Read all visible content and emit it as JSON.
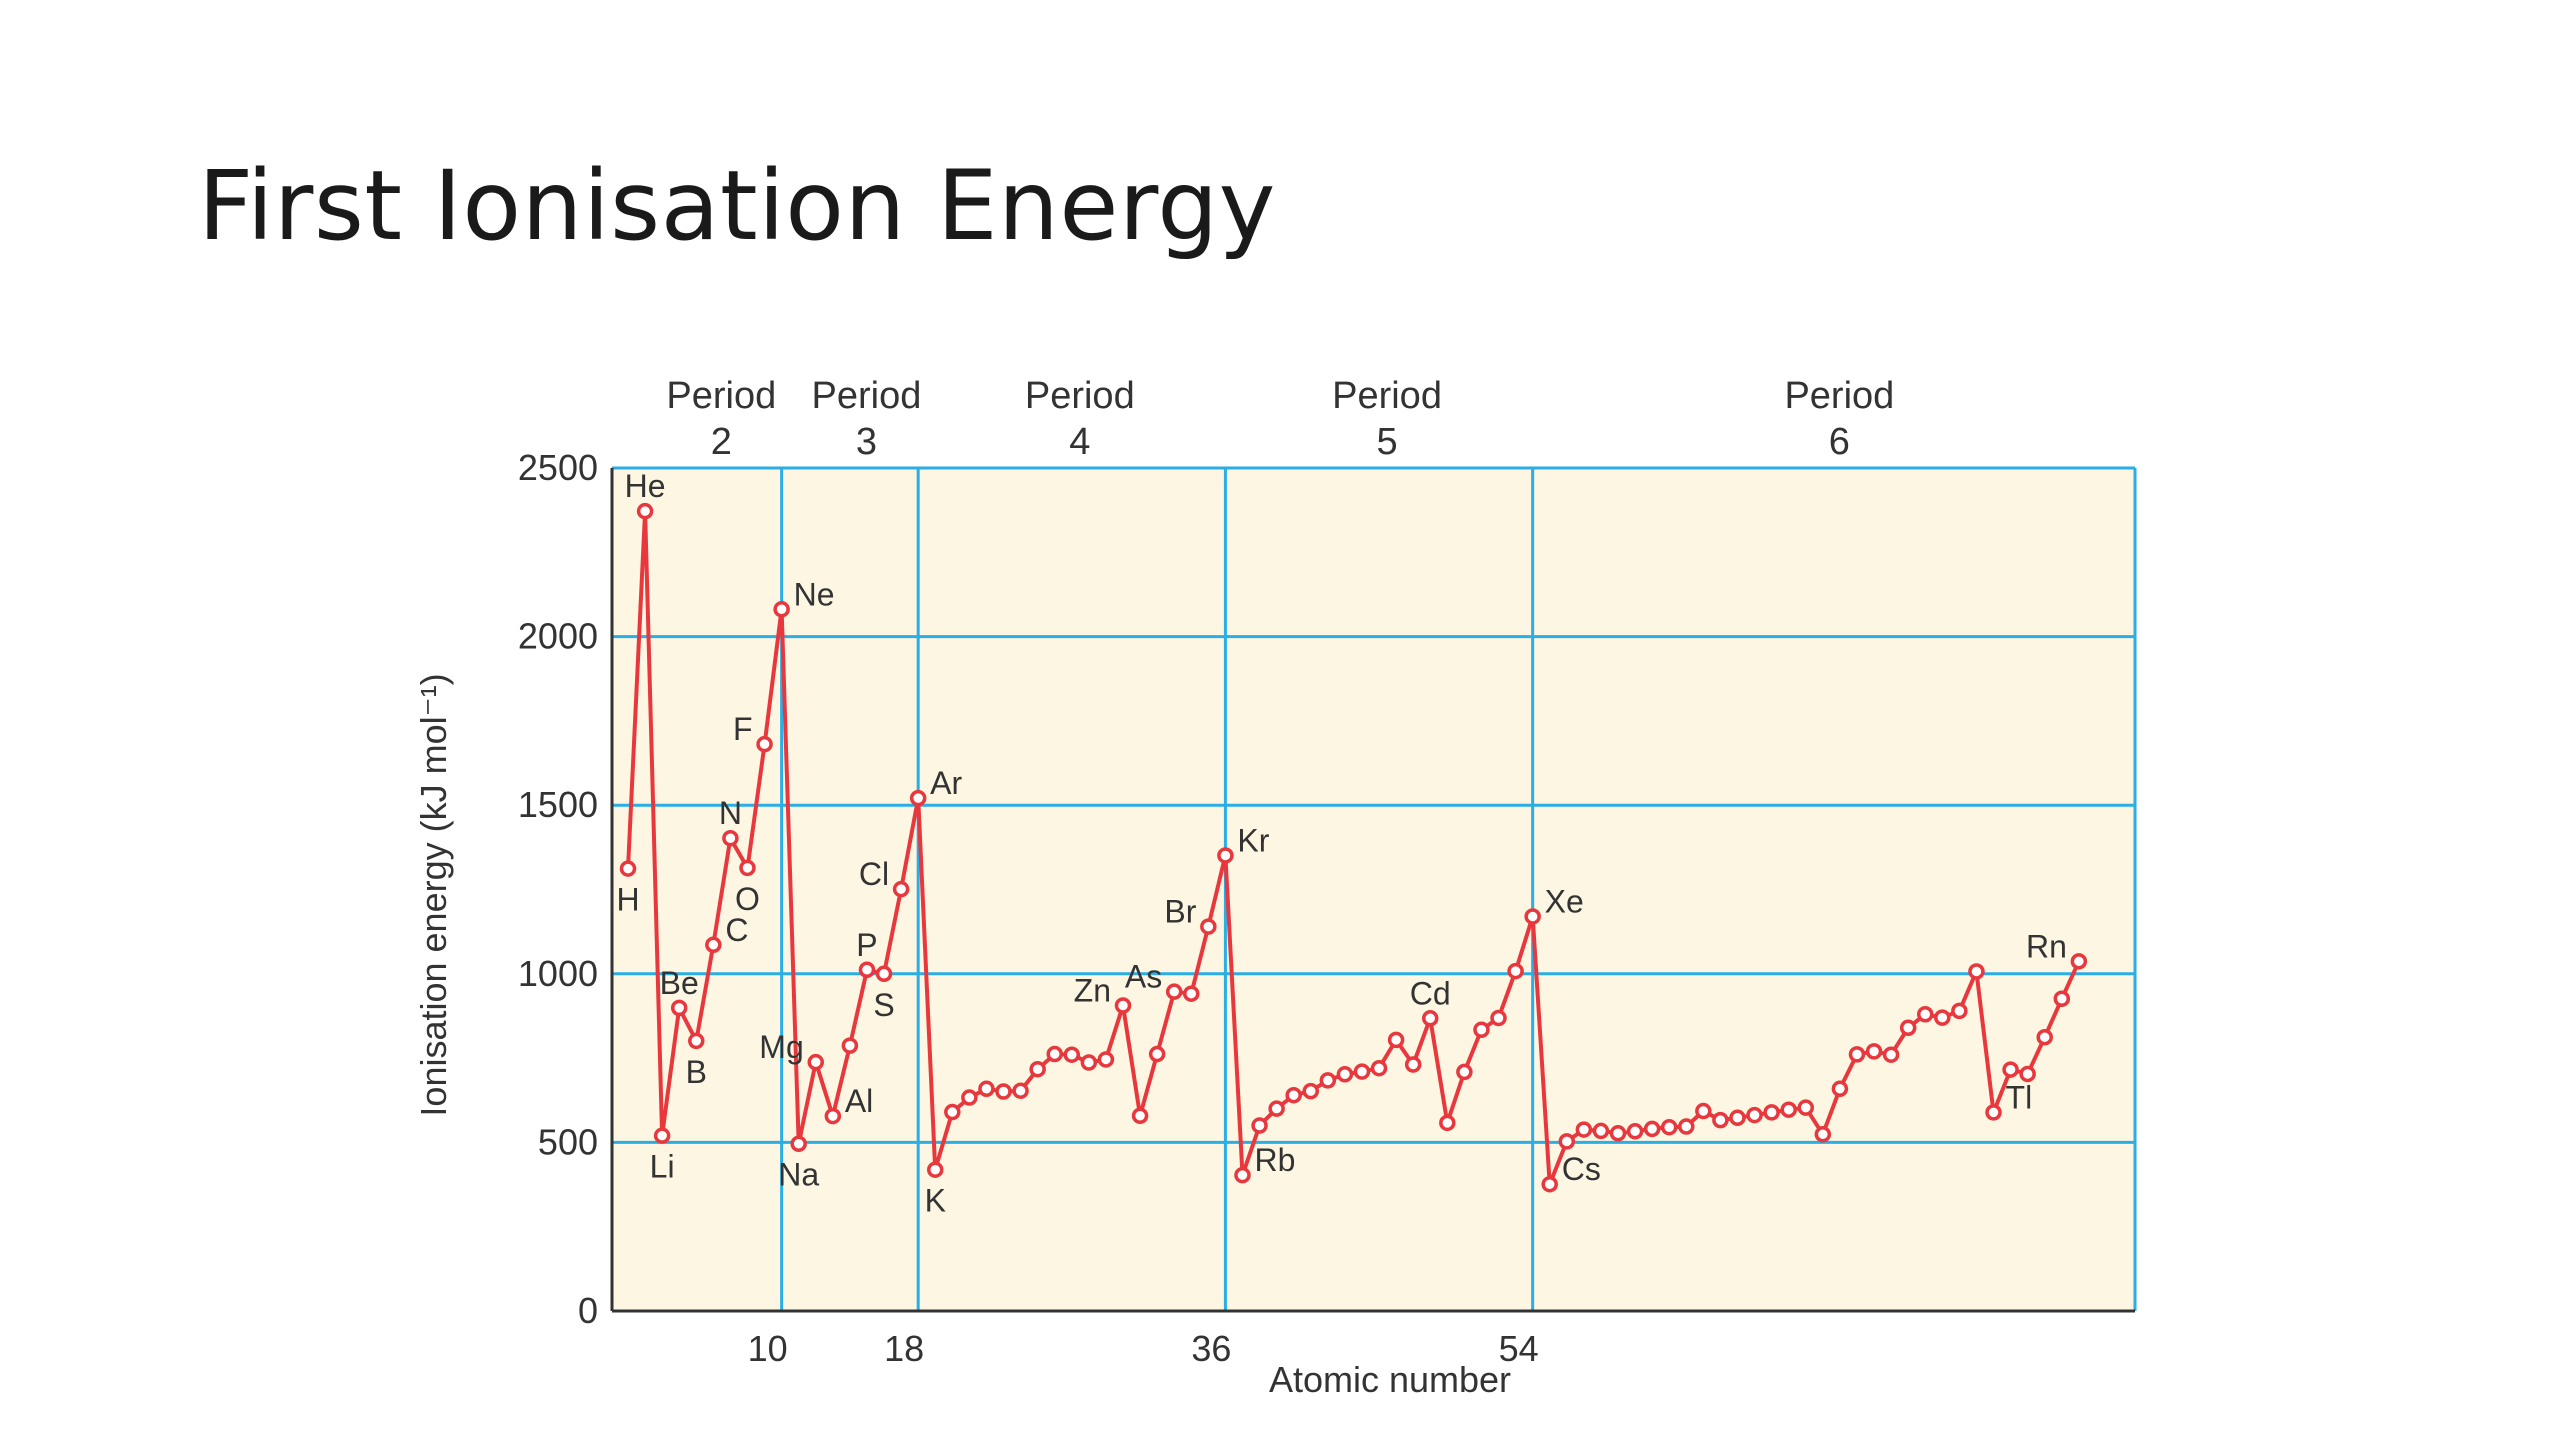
{
  "slide": {
    "title": "First Ionisation Energy"
  },
  "chart_data": {
    "type": "line",
    "xlabel": "Atomic number",
    "ylabel": "Ionisation energy (kJ mol⁻¹)",
    "ylim": [
      0,
      2500
    ],
    "xlim": [
      1,
      88
    ],
    "yticks": [
      0,
      500,
      1000,
      1500,
      2000,
      2500
    ],
    "xticks": [
      10,
      18,
      36,
      54
    ],
    "vlines": [
      10,
      18,
      36,
      54
    ],
    "hlines": [
      500,
      1000,
      1500,
      2000,
      2500
    ],
    "grid": true,
    "colors": {
      "line": "#e8383d",
      "grid": "#29aee6",
      "plot_bg": "#fcf6e2",
      "axis": "#333333"
    },
    "periods": [
      {
        "line1": "Period",
        "line2": "2",
        "x_center": 6
      },
      {
        "line1": "Period",
        "line2": "3",
        "x_center": 14.5
      },
      {
        "line1": "Period",
        "line2": "4",
        "x_center": 27
      },
      {
        "line1": "Period",
        "line2": "5",
        "x_center": 45
      },
      {
        "line1": "Period",
        "line2": "6",
        "x_center": 71.5
      }
    ],
    "series": [
      {
        "x": [
          1,
          2,
          3,
          4,
          5,
          6,
          7,
          8,
          9,
          10,
          11,
          12,
          13,
          14,
          15,
          16,
          17,
          18,
          19,
          20,
          21,
          22,
          23,
          24,
          25,
          26,
          27,
          28,
          29,
          30,
          31,
          32,
          33,
          34,
          35,
          36,
          37,
          38,
          39,
          40,
          41,
          42,
          43,
          44,
          45,
          46,
          47,
          48,
          49,
          50,
          51,
          52,
          53,
          54,
          55,
          56,
          57,
          58,
          59,
          60,
          61,
          62,
          63,
          64,
          65,
          66,
          67,
          68,
          69,
          70,
          71,
          72,
          73,
          74,
          75,
          76,
          77,
          78,
          79,
          80,
          81,
          82,
          83,
          84,
          85,
          86
        ],
        "y": [
          1312,
          2372,
          520,
          899,
          801,
          1086,
          1402,
          1314,
          1681,
          2081,
          496,
          738,
          578,
          787,
          1012,
          1000,
          1251,
          1521,
          419,
          590,
          633,
          659,
          651,
          653,
          717,
          762,
          760,
          737,
          746,
          906,
          579,
          762,
          947,
          941,
          1140,
          1351,
          403,
          550,
          600,
          640,
          652,
          684,
          702,
          710,
          720,
          804,
          731,
          868,
          558,
          709,
          834,
          869,
          1008,
          1170,
          376,
          503,
          538,
          534,
          527,
          533,
          540,
          545,
          547,
          593,
          566,
          573,
          581,
          589,
          597,
          603,
          524,
          659,
          761,
          770,
          760,
          840,
          880,
          870,
          890,
          1007,
          589,
          716,
          703,
          812,
          926,
          1037
        ]
      }
    ],
    "labels": [
      {
        "x": 1,
        "y": 1312,
        "text": "H",
        "pos": "below"
      },
      {
        "x": 2,
        "y": 2372,
        "text": "He",
        "pos": "above"
      },
      {
        "x": 3,
        "y": 520,
        "text": "Li",
        "pos": "below"
      },
      {
        "x": 4,
        "y": 899,
        "text": "Be",
        "pos": "above"
      },
      {
        "x": 5,
        "y": 801,
        "text": "B",
        "pos": "below"
      },
      {
        "x": 6,
        "y": 1086,
        "text": "C",
        "pos": "right"
      },
      {
        "x": 7,
        "y": 1402,
        "text": "N",
        "pos": "above"
      },
      {
        "x": 8,
        "y": 1314,
        "text": "O",
        "pos": "below"
      },
      {
        "x": 9,
        "y": 1681,
        "text": "F",
        "pos": "left"
      },
      {
        "x": 10,
        "y": 2081,
        "text": "Ne",
        "pos": "right"
      },
      {
        "x": 11,
        "y": 496,
        "text": "Na",
        "pos": "below"
      },
      {
        "x": 12,
        "y": 738,
        "text": "Mg",
        "pos": "left"
      },
      {
        "x": 13,
        "y": 578,
        "text": "Al",
        "pos": "right"
      },
      {
        "x": 15,
        "y": 1012,
        "text": "P",
        "pos": "above"
      },
      {
        "x": 16,
        "y": 1000,
        "text": "S",
        "pos": "below"
      },
      {
        "x": 17,
        "y": 1251,
        "text": "Cl",
        "pos": "left"
      },
      {
        "x": 18,
        "y": 1521,
        "text": "Ar",
        "pos": "right"
      },
      {
        "x": 19,
        "y": 419,
        "text": "K",
        "pos": "below"
      },
      {
        "x": 30,
        "y": 906,
        "text": "Zn",
        "pos": "left"
      },
      {
        "x": 33,
        "y": 947,
        "text": "As",
        "pos": "left"
      },
      {
        "x": 35,
        "y": 1140,
        "text": "Br",
        "pos": "left"
      },
      {
        "x": 36,
        "y": 1351,
        "text": "Kr",
        "pos": "right"
      },
      {
        "x": 37,
        "y": 403,
        "text": "Rb",
        "pos": "right"
      },
      {
        "x": 48,
        "y": 868,
        "text": "Cd",
        "pos": "above"
      },
      {
        "x": 54,
        "y": 1170,
        "text": "Xe",
        "pos": "right"
      },
      {
        "x": 55,
        "y": 376,
        "text": "Cs",
        "pos": "right"
      },
      {
        "x": 81,
        "y": 589,
        "text": "Tl",
        "pos": "right"
      },
      {
        "x": 86,
        "y": 1037,
        "text": "Rn",
        "pos": "left"
      }
    ]
  }
}
